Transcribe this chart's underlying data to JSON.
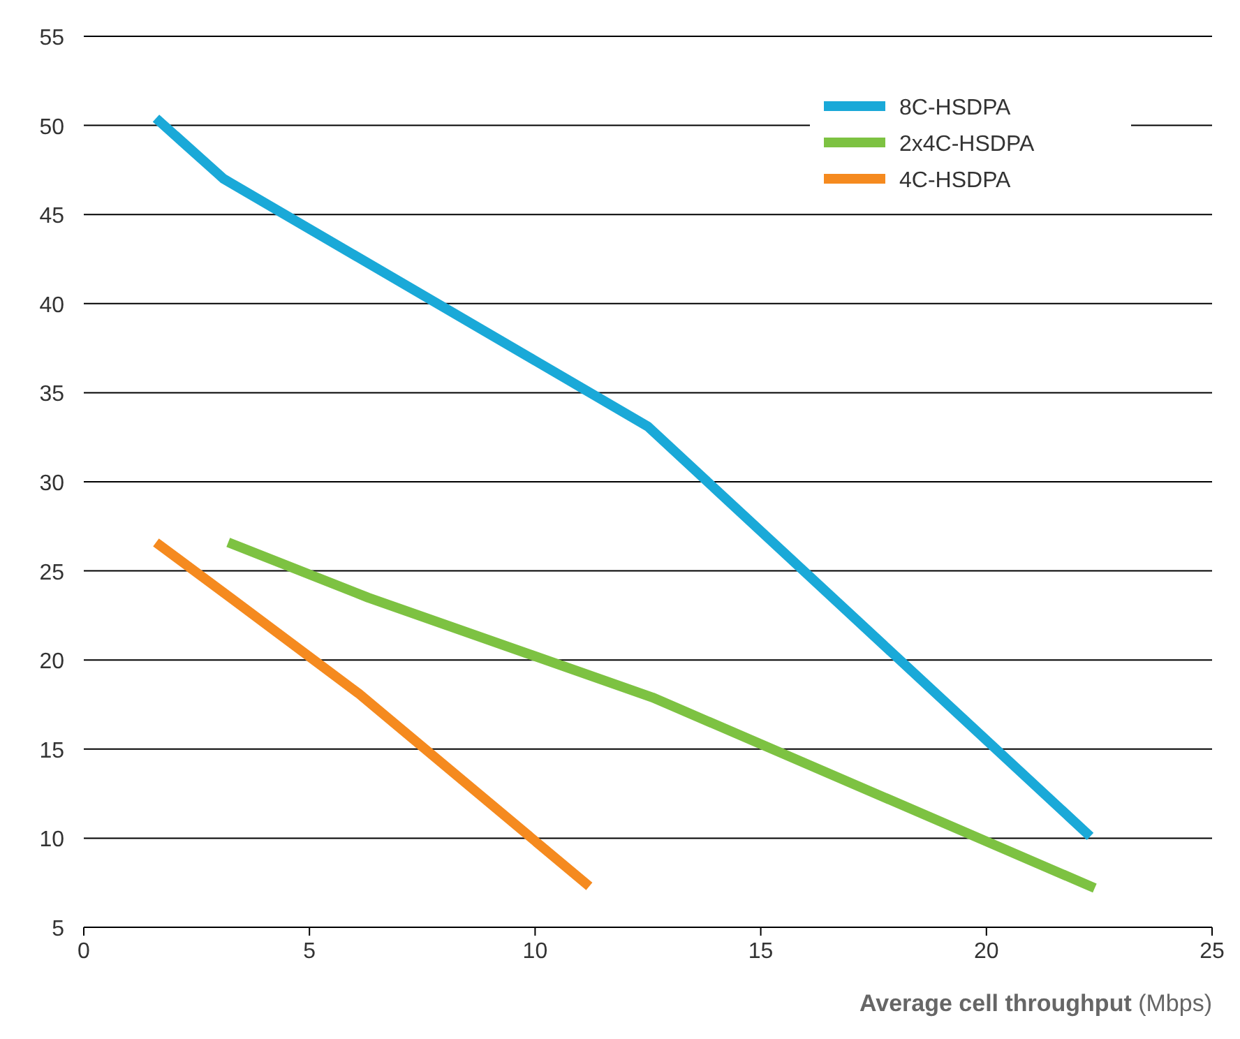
{
  "chart_data": {
    "type": "line",
    "xlabel": "Average cell throughput (Mbps)",
    "xlim": [
      0,
      25
    ],
    "xticks": [
      0,
      5,
      10,
      15,
      20,
      25
    ],
    "ylim": [
      5,
      55
    ],
    "yticks": [
      5,
      10,
      15,
      20,
      25,
      30,
      35,
      40,
      45,
      50,
      55
    ],
    "grid": "y",
    "legend": "top right",
    "line_style": "solid",
    "marker": "none",
    "series": [
      {
        "name": "8C-HSDPA",
        "color": "#1aa9d8",
        "x": [
          1.6,
          3.1,
          12.5,
          22.3
        ],
        "values": [
          50.4,
          47.0,
          33.1,
          10.1
        ]
      },
      {
        "name": "2x4C-HSDPA",
        "color": "#7dc242",
        "x": [
          3.2,
          6.3,
          12.6,
          22.4
        ],
        "values": [
          26.6,
          23.5,
          17.9,
          7.2
        ]
      },
      {
        "name": "4C-HSDPA",
        "color": "#f58a1f",
        "x": [
          1.6,
          3.3,
          6.1,
          11.2
        ],
        "values": [
          26.6,
          23.4,
          18.1,
          7.3
        ]
      }
    ]
  }
}
